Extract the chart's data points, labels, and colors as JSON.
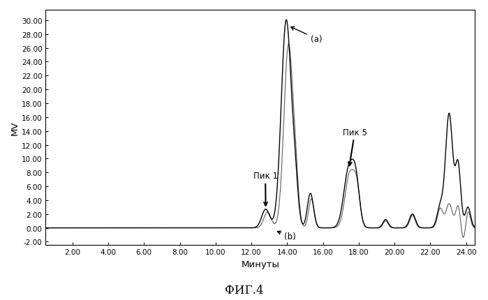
{
  "title": "ФИГ.4",
  "xlabel": "Минуты",
  "ylabel": "МV",
  "xlim": [
    0.5,
    24.5
  ],
  "ylim": [
    -2.5,
    31.5
  ],
  "xticks": [
    2.0,
    4.0,
    6.0,
    8.0,
    10.0,
    12.0,
    14.0,
    16.0,
    18.0,
    20.0,
    22.0,
    24.0
  ],
  "yticks": [
    -2.0,
    0.0,
    2.0,
    4.0,
    6.0,
    8.0,
    10.0,
    12.0,
    14.0,
    16.0,
    18.0,
    20.0,
    22.0,
    24.0,
    26.0,
    28.0,
    30.0
  ],
  "background_color": "#ffffff",
  "line_color_a": "#000000",
  "line_color_b": "#666666",
  "label_a": "(a)",
  "label_b": "(b)",
  "peak1_label": "Пик 1",
  "peak5_label": "Пик 5"
}
